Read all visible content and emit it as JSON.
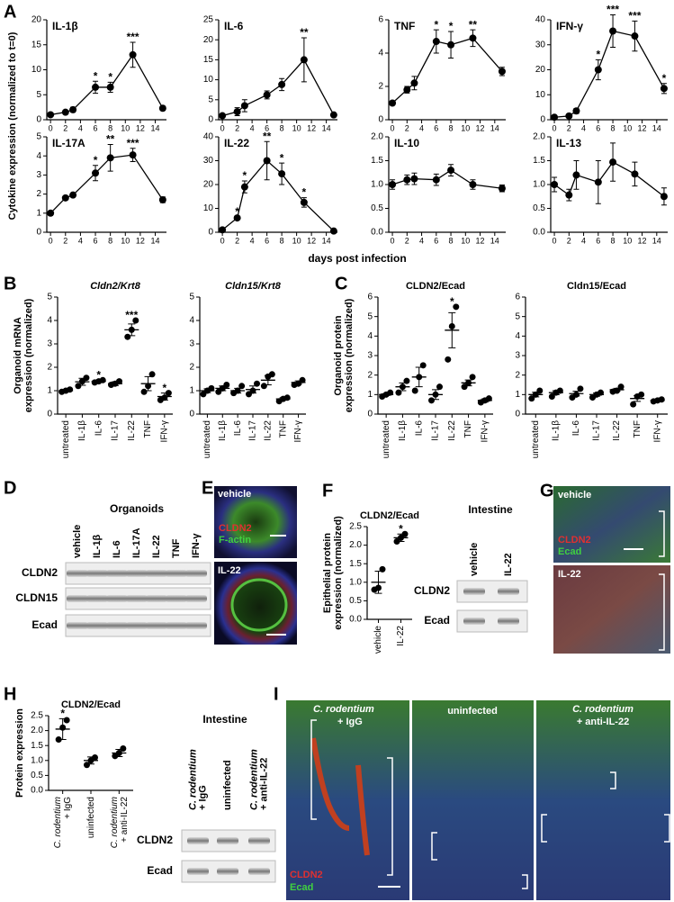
{
  "panel_labels": [
    "A",
    "B",
    "C",
    "D",
    "E",
    "F",
    "G",
    "H",
    "I"
  ],
  "panel_a": {
    "ylabel": "Cytokine expression (normalized to t=0)",
    "xlabel": "days post infection"
  },
  "chart_data": [
    {
      "type": "line",
      "title": "IL-1β",
      "color": "#000000",
      "x": [
        0,
        2,
        3,
        6,
        8,
        11,
        15
      ],
      "values": [
        1,
        1.5,
        2,
        6.5,
        6.5,
        13,
        2.3
      ],
      "errors": [
        0.3,
        0.3,
        0.5,
        1.2,
        1,
        2.5,
        0.4
      ],
      "stars": [
        null,
        null,
        null,
        "*",
        "*",
        "***",
        null
      ],
      "xlim": [
        -0.5,
        15.5
      ],
      "xticks": [
        0,
        2,
        4,
        6,
        8,
        10,
        12,
        14
      ],
      "ylim": [
        0,
        20
      ],
      "yticks": [
        0,
        5,
        10,
        15,
        20
      ]
    },
    {
      "type": "line",
      "title": "IL-6",
      "color": "#000000",
      "x": [
        0,
        2,
        3,
        6,
        8,
        11,
        15
      ],
      "values": [
        1,
        2,
        3.5,
        6.2,
        8.8,
        15,
        1.2
      ],
      "errors": [
        0.3,
        1,
        1.5,
        1,
        1.5,
        5.5,
        0.3
      ],
      "stars": [
        null,
        null,
        null,
        null,
        null,
        "**",
        null
      ],
      "xlim": [
        -0.5,
        15.5
      ],
      "xticks": [
        0,
        2,
        4,
        6,
        8,
        10,
        12,
        14
      ],
      "ylim": [
        0,
        25
      ],
      "yticks": [
        0,
        5,
        10,
        15,
        20,
        25
      ]
    },
    {
      "type": "line",
      "title": "TNF",
      "color": "#000000",
      "x": [
        0,
        2,
        3,
        6,
        8,
        11,
        15
      ],
      "values": [
        1,
        1.8,
        2.2,
        4.7,
        4.5,
        4.9,
        2.9
      ],
      "errors": [
        0.1,
        0.2,
        0.4,
        0.7,
        0.8,
        0.5,
        0.25
      ],
      "stars": [
        null,
        null,
        null,
        "*",
        "*",
        "**",
        null
      ],
      "xlim": [
        -0.5,
        15.5
      ],
      "xticks": [
        0,
        2,
        4,
        6,
        8,
        10,
        12,
        14
      ],
      "ylim": [
        0,
        6
      ],
      "yticks": [
        0,
        2,
        4,
        6
      ]
    },
    {
      "type": "line",
      "title": "IFN-γ",
      "color": "#000000",
      "x": [
        0,
        2,
        3,
        6,
        8,
        11,
        15
      ],
      "values": [
        1,
        1.5,
        3.5,
        20,
        35.5,
        33.5,
        12.5
      ],
      "errors": [
        0.3,
        0.5,
        1,
        4,
        6.5,
        6,
        2
      ],
      "stars": [
        null,
        null,
        null,
        "*",
        "***",
        "***",
        "*"
      ],
      "xlim": [
        -0.5,
        15.5
      ],
      "xticks": [
        0,
        2,
        4,
        6,
        8,
        10,
        12,
        14
      ],
      "ylim": [
        0,
        40
      ],
      "yticks": [
        0,
        10,
        20,
        30,
        40
      ]
    },
    {
      "type": "line",
      "title": "IL-17A",
      "color": "#000000",
      "x": [
        0,
        2,
        3,
        6,
        8,
        11,
        15
      ],
      "values": [
        1,
        1.8,
        1.95,
        3.1,
        3.9,
        4.05,
        1.7
      ],
      "errors": [
        0.05,
        0.08,
        0.08,
        0.4,
        0.7,
        0.35,
        0.15
      ],
      "stars": [
        null,
        null,
        null,
        "*",
        "**",
        "***",
        null
      ],
      "xlim": [
        -0.5,
        15.5
      ],
      "xticks": [
        0,
        2,
        4,
        6,
        8,
        10,
        12,
        14
      ],
      "ylim": [
        0,
        5
      ],
      "yticks": [
        0,
        1,
        2,
        3,
        4,
        5
      ]
    },
    {
      "type": "line",
      "title": "IL-22",
      "color": "#000000",
      "x": [
        0,
        2,
        3,
        6,
        8,
        11,
        15
      ],
      "values": [
        1,
        6,
        19,
        30,
        24.5,
        12.5,
        0.5
      ],
      "errors": [
        0.3,
        0.5,
        2.5,
        8,
        4.5,
        2,
        0.2
      ],
      "stars": [
        null,
        "*",
        "*",
        "**",
        "*",
        "*",
        null
      ],
      "xlim": [
        -0.5,
        15.5
      ],
      "xticks": [
        0,
        2,
        4,
        6,
        8,
        10,
        12,
        14
      ],
      "ylim": [
        0,
        40
      ],
      "yticks": [
        0,
        10,
        20,
        30,
        40
      ]
    },
    {
      "type": "line",
      "title": "IL-10",
      "color": "#000000",
      "x": [
        0,
        2,
        3,
        6,
        8,
        11,
        15
      ],
      "values": [
        1.0,
        1.1,
        1.12,
        1.1,
        1.3,
        1.0,
        0.92
      ],
      "errors": [
        0.1,
        0.1,
        0.12,
        0.12,
        0.12,
        0.1,
        0.07
      ],
      "stars": [
        null,
        null,
        null,
        null,
        null,
        null,
        null
      ],
      "xlim": [
        -0.5,
        15.5
      ],
      "xticks": [
        0,
        2,
        4,
        6,
        8,
        10,
        12,
        14
      ],
      "ylim": [
        0,
        2
      ],
      "yticks": [
        {
          "value": 0,
          "label": "0.0"
        },
        {
          "value": 0.5,
          "label": "0.5"
        },
        {
          "value": 1,
          "label": "1.0"
        },
        {
          "value": 1.5,
          "label": "1.5"
        },
        {
          "value": 2,
          "label": "2.0"
        }
      ]
    },
    {
      "type": "line",
      "title": "IL-13",
      "color": "#000000",
      "x": [
        0,
        2,
        3,
        6,
        8,
        11,
        15
      ],
      "values": [
        1.0,
        0.78,
        1.2,
        1.05,
        1.47,
        1.22,
        0.75
      ],
      "errors": [
        0.15,
        0.12,
        0.3,
        0.45,
        0.4,
        0.25,
        0.18
      ],
      "stars": [
        null,
        null,
        null,
        null,
        null,
        null,
        null
      ],
      "xlim": [
        -0.5,
        15.5
      ],
      "xticks": [
        0,
        2,
        4,
        6,
        8,
        10,
        12,
        14
      ],
      "ylim": [
        0,
        2
      ],
      "yticks": [
        {
          "value": 0,
          "label": "0.0"
        },
        {
          "value": 0.5,
          "label": "0.5"
        },
        {
          "value": 1,
          "label": "1.0"
        },
        {
          "value": 1.5,
          "label": "1.5"
        },
        {
          "value": 2,
          "label": "2.0"
        }
      ]
    },
    {
      "type": "dot",
      "title": "Cldn2/Krt8",
      "title_italic": true,
      "ylabel": [
        "Organoid mRNA",
        "expression (normalized)"
      ],
      "color": "#000000",
      "categories": [
        "untreated",
        "IL-1β",
        "IL-6",
        "IL-17",
        "IL-22",
        "TNF",
        "IFN-γ"
      ],
      "values": [
        1.0,
        1.38,
        1.4,
        1.3,
        3.6,
        1.3,
        0.75
      ],
      "errors": [
        0.05,
        0.15,
        0.05,
        0.08,
        0.25,
        0.3,
        0.15
      ],
      "points": [
        [
          0.95,
          1.0,
          1.05
        ],
        [
          1.2,
          1.4,
          1.55
        ],
        [
          1.35,
          1.4,
          1.45
        ],
        [
          1.25,
          1.3,
          1.4
        ],
        [
          3.3,
          3.6,
          4.0
        ],
        [
          0.95,
          1.2,
          1.7
        ],
        [
          0.6,
          0.7,
          0.9
        ]
      ],
      "stars": [
        null,
        null,
        "*",
        null,
        "***",
        null,
        "*"
      ],
      "ylim": [
        0,
        5
      ],
      "yticks": [
        0,
        1,
        2,
        3,
        4,
        5
      ]
    },
    {
      "type": "dot",
      "title": "Cldn15/Krt8",
      "title_italic": true,
      "color": "#000000",
      "categories": [
        "untreated",
        "IL-1β",
        "IL-6",
        "IL-17",
        "IL-22",
        "TNF",
        "IFN-γ"
      ],
      "values": [
        1.0,
        1.1,
        1.0,
        1.05,
        1.45,
        0.65,
        1.35
      ],
      "errors": [
        0.08,
        0.1,
        0.1,
        0.15,
        0.2,
        0.05,
        0.07
      ],
      "points": [
        [
          0.85,
          1.0,
          1.1
        ],
        [
          0.95,
          1.1,
          1.25
        ],
        [
          0.9,
          1.0,
          1.2
        ],
        [
          0.85,
          1.0,
          1.3
        ],
        [
          1.2,
          1.6,
          1.7
        ],
        [
          0.55,
          0.65,
          0.7
        ],
        [
          1.25,
          1.3,
          1.45
        ]
      ],
      "stars": [
        null,
        null,
        null,
        null,
        null,
        null,
        null
      ],
      "ylim": [
        0,
        5
      ],
      "yticks": [
        0,
        1,
        2,
        3,
        4,
        5
      ]
    },
    {
      "type": "dot",
      "title": "CLDN2/Ecad",
      "ylabel": [
        "Organoid protein",
        "expression (normalized)"
      ],
      "color": "#000000",
      "categories": [
        "untreated",
        "IL-1β",
        "IL-6",
        "IL-17",
        "IL-22",
        "TNF",
        "IFN-γ"
      ],
      "values": [
        1.0,
        1.4,
        1.9,
        1.0,
        4.3,
        1.6,
        0.7
      ],
      "errors": [
        0.05,
        0.2,
        0.5,
        0.25,
        0.9,
        0.15,
        0.08
      ],
      "points": [
        [
          0.9,
          1.0,
          1.1
        ],
        [
          1.1,
          1.4,
          1.7
        ],
        [
          1.2,
          1.9,
          2.5
        ],
        [
          0.7,
          1.0,
          1.4
        ],
        [
          2.8,
          4.5,
          5.5
        ],
        [
          1.4,
          1.6,
          1.9
        ],
        [
          0.6,
          0.7,
          0.8
        ]
      ],
      "stars": [
        null,
        null,
        null,
        null,
        "*",
        null,
        null
      ],
      "ylim": [
        0,
        6
      ],
      "yticks": [
        0,
        1,
        2,
        3,
        4,
        5,
        6
      ]
    },
    {
      "type": "dot",
      "title": "Cldn15/Ecad",
      "color": "#000000",
      "categories": [
        "untreated",
        "IL-1β",
        "IL-6",
        "IL-17",
        "IL-22",
        "TNF",
        "IFN-γ"
      ],
      "values": [
        1.0,
        1.1,
        1.05,
        1.0,
        1.25,
        0.8,
        0.7
      ],
      "errors": [
        0.12,
        0.1,
        0.12,
        0.08,
        0.07,
        0.15,
        0.04
      ],
      "points": [
        [
          0.8,
          1.0,
          1.2
        ],
        [
          0.9,
          1.1,
          1.2
        ],
        [
          0.85,
          1.0,
          1.3
        ],
        [
          0.85,
          1.0,
          1.1
        ],
        [
          1.15,
          1.2,
          1.4
        ],
        [
          0.5,
          0.9,
          1.0
        ],
        [
          0.65,
          0.7,
          0.75
        ]
      ],
      "stars": [
        null,
        null,
        null,
        null,
        null,
        null,
        null
      ],
      "ylim": [
        0,
        6
      ],
      "yticks": [
        0,
        1,
        2,
        3,
        4,
        5,
        6
      ]
    },
    {
      "type": "dot",
      "title": "CLDN2/Ecad",
      "ylabel": [
        "Epithelial protein",
        "expression (normalized)"
      ],
      "color": "#000000",
      "categories": [
        "vehicle",
        "IL-22"
      ],
      "values": [
        1.0,
        2.2
      ],
      "errors": [
        0.3,
        0.1
      ],
      "points": [
        [
          0.8,
          0.85,
          1.35
        ],
        [
          2.1,
          2.2,
          2.3
        ]
      ],
      "stars": [
        null,
        "*"
      ],
      "ylim": [
        0,
        2.5
      ],
      "yticks": [
        {
          "value": 0,
          "label": "0.0"
        },
        {
          "value": 0.5,
          "label": "0.5"
        },
        {
          "value": 1,
          "label": "1.0"
        },
        {
          "value": 1.5,
          "label": "1.5"
        },
        {
          "value": 2,
          "label": "2.0"
        },
        {
          "value": 2.5,
          "label": "2.5"
        }
      ]
    },
    {
      "type": "dot",
      "title": "CLDN2/Ecad",
      "ylabel": [
        "Protein expression"
      ],
      "color": "#000000",
      "categories": [
        [
          "C. rodentium",
          "+ IgG"
        ],
        [
          "uninfected"
        ],
        [
          "C. rodentium",
          "+ anti-IL-22"
        ]
      ],
      "values": [
        2.05,
        1.0,
        1.25
      ],
      "errors": [
        0.35,
        0.12,
        0.12
      ],
      "points": [
        [
          1.7,
          2.1,
          2.35
        ],
        [
          0.85,
          1.0,
          1.1
        ],
        [
          1.15,
          1.25,
          1.4
        ]
      ],
      "stars": [
        "*",
        null,
        null
      ],
      "ylim": [
        0,
        2.5
      ],
      "yticks": [
        {
          "value": 0,
          "label": "0.0"
        },
        {
          "value": 0.5,
          "label": "0.5"
        },
        {
          "value": 1,
          "label": "1.0"
        },
        {
          "value": 1.5,
          "label": "1.5"
        },
        {
          "value": 2,
          "label": "2.0"
        },
        {
          "value": 2.5,
          "label": "2.5"
        }
      ]
    }
  ],
  "blots": [
    {
      "title": "Organoids",
      "lanes": [
        [
          "vehicle"
        ],
        [
          "IL-1β"
        ],
        [
          "IL-6"
        ],
        [
          "IL-17A"
        ],
        [
          "IL-22"
        ],
        [
          "TNF"
        ],
        [
          "IFN-γ"
        ]
      ],
      "rows": [
        "CLDN2",
        "CLDN15",
        "Ecad"
      ]
    },
    {
      "title": "Intestine",
      "lanes": [
        [
          "vehicle"
        ],
        [
          "IL-22"
        ]
      ],
      "rows": [
        "CLDN2",
        "Ecad"
      ]
    },
    {
      "title": "Intestine",
      "lanes": [
        [
          "C. rodentium",
          "+ IgG"
        ],
        [
          "uninfected"
        ],
        [
          "C. rodentium",
          "+ anti-IL-22"
        ]
      ],
      "rows": [
        "CLDN2",
        "Ecad"
      ]
    }
  ],
  "images": {
    "E": {
      "top": "vehicle",
      "stain1": "CLDN2",
      "stain2": "F-actin",
      "bottom": "IL-22"
    },
    "G": {
      "top": "vehicle",
      "stain1": "CLDN2",
      "stain2": "Ecad",
      "bottom": "IL-22"
    },
    "I": {
      "left1": "C. rodentium",
      "left2": "+ IgG",
      "middle": "uninfected",
      "right1": "C. rodentium",
      "right2": "+ anti-IL-22",
      "stain1": "CLDN2",
      "stain2": "Ecad"
    }
  }
}
